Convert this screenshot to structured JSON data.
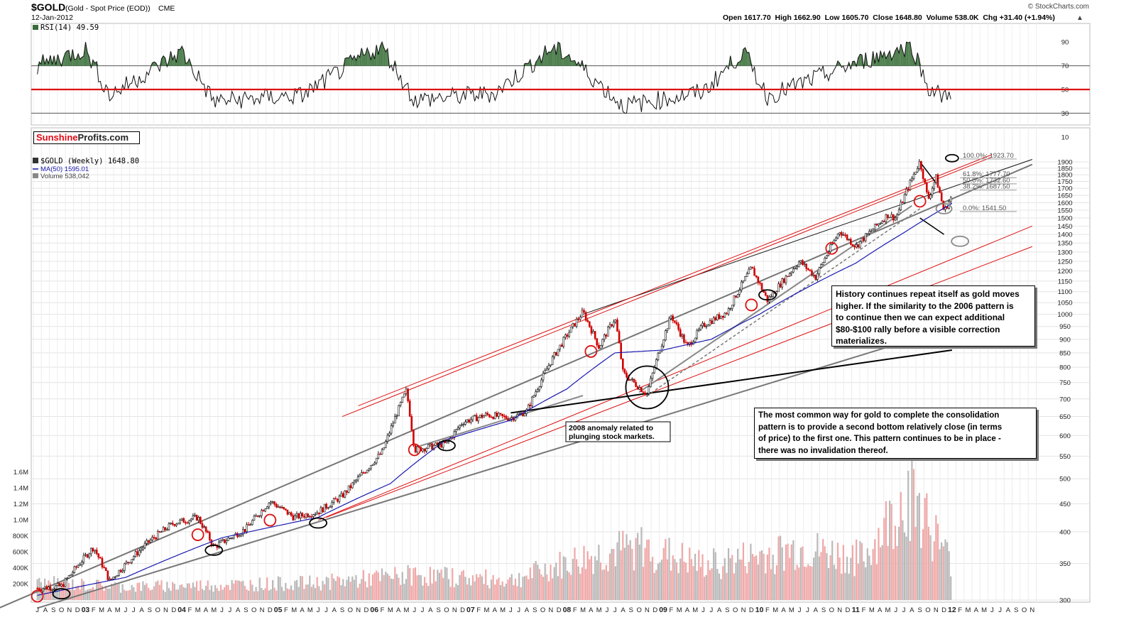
{
  "header": {
    "symbol": "$GOLD",
    "description": "(Gold - Spot Price (EOD))",
    "exchange": "CME",
    "date": "12-Jan-2012",
    "ohlc_text": "Open 1617.70  High 1662.90  Low 1605.70  Close 1648.80  Volume 538.0K  Chg +31.40 (+1.94%)",
    "arrow": "▲",
    "source": "© StockCharts.com"
  },
  "brand": {
    "part1": "Sunshine",
    "part2": "Profits.com"
  },
  "rsi": {
    "label": "RSI(14) 49.59",
    "ticks": [
      "90",
      "70",
      "50",
      "30",
      "10"
    ],
    "colors": {
      "line": "#111111",
      "midline": "#dd1111",
      "fill": "#4f7f4f"
    }
  },
  "price_legend": {
    "symbol_line": "$GOLD (Weekly) 1648.80",
    "ma_line": "MA(50) 1595.01",
    "volume_line": "Volume 538,042"
  },
  "fib_labels": [
    "100.0%: 1923.70",
    "61.8%: 1777.70",
    "50.0%: 1732.60",
    "38.2%: 1687.50",
    "0.0%: 1541.50"
  ],
  "annotations": {
    "anomaly": [
      "2008 anomaly related to",
      "plunging stock markets."
    ],
    "history": [
      "History continues repeat itself as gold moves",
      "higher. If the similarity to the 2006 pattern is",
      "to continue then we can expect additional",
      "$80-$100 rally before a visible correction",
      "materializes."
    ],
    "consolidation": [
      "The most common way for gold to complete the consolidation",
      "pattern is to provide a second bottom relatively close (in terms",
      "of price) to the first one. This pattern continues to be in place -",
      "there was no invalidation thereof."
    ]
  },
  "chart_data": {
    "type": "line",
    "title": "$GOLD (Gold - Spot Price (EOD))",
    "price_axis": {
      "scale": "log",
      "range": [
        300,
        1900
      ],
      "ticks": [
        1900,
        1850,
        1800,
        1750,
        1700,
        1650,
        1600,
        1550,
        1500,
        1450,
        1400,
        1350,
        1300,
        1250,
        1200,
        1150,
        1100,
        1050,
        1000,
        950,
        900,
        850,
        800,
        750,
        700,
        650,
        600,
        550,
        500,
        450,
        400,
        350,
        300
      ]
    },
    "volume_axis": {
      "ticks": [
        "1.6M",
        "1.4M",
        "1.2M",
        "1.0M",
        "800K",
        "600K",
        "400K",
        "200K"
      ],
      "range": [
        0,
        1600000
      ]
    },
    "time_axis": {
      "range": [
        "2002-07",
        "2012-11"
      ],
      "labels": [
        "J",
        "A",
        "S",
        "O",
        "N",
        "D",
        "03",
        "F",
        "M",
        "A",
        "M",
        "J",
        "J",
        "A",
        "S",
        "O",
        "N",
        "D",
        "04",
        "F",
        "M",
        "A",
        "M",
        "J",
        "J",
        "A",
        "S",
        "O",
        "N",
        "D",
        "05",
        "F",
        "M",
        "A",
        "M",
        "J",
        "J",
        "A",
        "S",
        "O",
        "N",
        "D",
        "06",
        "F",
        "M",
        "A",
        "M",
        "J",
        "J",
        "A",
        "S",
        "O",
        "N",
        "D",
        "07",
        "F",
        "M",
        "A",
        "M",
        "J",
        "J",
        "A",
        "S",
        "O",
        "N",
        "D",
        "08",
        "F",
        "M",
        "A",
        "M",
        "J",
        "J",
        "A",
        "S",
        "O",
        "N",
        "D",
        "09",
        "F",
        "M",
        "A",
        "M",
        "J",
        "J",
        "A",
        "S",
        "O",
        "N",
        "D",
        "10",
        "F",
        "M",
        "A",
        "M",
        "J",
        "J",
        "A",
        "S",
        "O",
        "N",
        "D",
        "11",
        "F",
        "M",
        "A",
        "M",
        "J",
        "J",
        "A",
        "S",
        "O",
        "N",
        "D",
        "12",
        "F",
        "M",
        "A",
        "M",
        "J",
        "J",
        "A",
        "S",
        "O",
        "N"
      ]
    },
    "series": [
      {
        "name": "$GOLD (Weekly)",
        "color": "#000000",
        "points": [
          [
            "2002-07",
            315
          ],
          [
            "2002-10",
            318
          ],
          [
            "2003-02",
            375
          ],
          [
            "2003-04",
            325
          ],
          [
            "2003-09",
            385
          ],
          [
            "2003-12",
            415
          ],
          [
            "2004-03",
            425
          ],
          [
            "2004-05",
            375
          ],
          [
            "2004-09",
            405
          ],
          [
            "2004-12",
            455
          ],
          [
            "2005-03",
            425
          ],
          [
            "2005-06",
            435
          ],
          [
            "2005-09",
            465
          ],
          [
            "2005-12",
            520
          ],
          [
            "2006-02",
            560
          ],
          [
            "2006-05",
            725
          ],
          [
            "2006-06",
            565
          ],
          [
            "2006-10",
            580
          ],
          [
            "2006-12",
            635
          ],
          [
            "2007-03",
            655
          ],
          [
            "2007-06",
            645
          ],
          [
            "2007-08",
            665
          ],
          [
            "2007-11",
            820
          ],
          [
            "2008-03",
            1010
          ],
          [
            "2008-05",
            870
          ],
          [
            "2008-07",
            985
          ],
          [
            "2008-08",
            780
          ],
          [
            "2008-10",
            735
          ],
          [
            "2008-11",
            715
          ],
          [
            "2009-02",
            995
          ],
          [
            "2009-04",
            870
          ],
          [
            "2009-06",
            955
          ],
          [
            "2009-09",
            1010
          ],
          [
            "2009-12",
            1215
          ],
          [
            "2010-02",
            1060
          ],
          [
            "2010-06",
            1250
          ],
          [
            "2010-08",
            1170
          ],
          [
            "2010-11",
            1420
          ],
          [
            "2011-01",
            1330
          ],
          [
            "2011-05",
            1520
          ],
          [
            "2011-06",
            1500
          ],
          [
            "2011-09",
            1905
          ],
          [
            "2011-10",
            1620
          ],
          [
            "2011-11",
            1780
          ],
          [
            "2011-12",
            1540
          ],
          [
            "2012-01",
            1648.8
          ]
        ]
      },
      {
        "name": "MA(50)",
        "color": "#1a1ab0",
        "points": [
          [
            "2002-07",
            306
          ],
          [
            "2003-06",
            330
          ],
          [
            "2004-06",
            390
          ],
          [
            "2005-06",
            425
          ],
          [
            "2006-03",
            490
          ],
          [
            "2006-10",
            590
          ],
          [
            "2007-06",
            640
          ],
          [
            "2008-01",
            730
          ],
          [
            "2008-07",
            850
          ],
          [
            "2009-01",
            860
          ],
          [
            "2009-07",
            900
          ],
          [
            "2010-01",
            1000
          ],
          [
            "2010-07",
            1120
          ],
          [
            "2011-01",
            1240
          ],
          [
            "2011-07",
            1410
          ],
          [
            "2012-01",
            1595.01
          ]
        ]
      },
      {
        "name": "Volume",
        "color": "#999999",
        "points": [
          [
            "2002-09",
            250000
          ],
          [
            "2003-06",
            200000
          ],
          [
            "2004-06",
            230000
          ],
          [
            "2005-06",
            260000
          ],
          [
            "2006-06",
            380000
          ],
          [
            "2007-06",
            300000
          ],
          [
            "2008-03",
            620000
          ],
          [
            "2008-10",
            800000
          ],
          [
            "2009-06",
            520000
          ],
          [
            "2010-06",
            760000
          ],
          [
            "2011-02",
            620000
          ],
          [
            "2011-08",
            1660000
          ],
          [
            "2011-12",
            720000
          ],
          [
            "2012-01",
            538042
          ]
        ]
      },
      {
        "name": "RSI(14)",
        "color": "#111111",
        "points": [
          [
            "2002-07",
            70
          ],
          [
            "2003-01",
            84
          ],
          [
            "2003-04",
            45
          ],
          [
            "2004-01",
            82
          ],
          [
            "2004-05",
            40
          ],
          [
            "2005-04",
            45
          ],
          [
            "2005-12",
            80
          ],
          [
            "2006-02",
            86
          ],
          [
            "2006-06",
            41
          ],
          [
            "2007-04",
            47
          ],
          [
            "2007-11",
            84
          ],
          [
            "2008-01",
            80
          ],
          [
            "2008-08",
            36
          ],
          [
            "2008-10",
            38
          ],
          [
            "2009-06",
            48
          ],
          [
            "2009-11",
            82
          ],
          [
            "2010-02",
            44
          ],
          [
            "2010-12",
            70
          ],
          [
            "2011-08",
            87
          ],
          [
            "2011-10",
            52
          ],
          [
            "2011-12",
            43
          ],
          [
            "2012-01",
            49.59
          ]
        ]
      }
    ]
  }
}
